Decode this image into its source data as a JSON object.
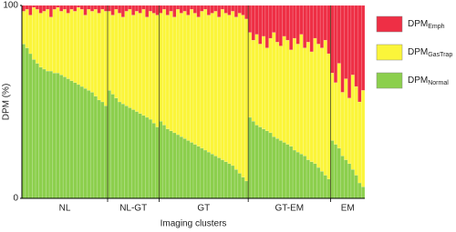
{
  "chart_data": {
    "type": "stacked-bar",
    "y_label": "DPM (%)",
    "x_label": "Imaging clusters",
    "ylim": [
      0,
      100
    ],
    "yticks": [
      0,
      100
    ],
    "groups": [
      {
        "label": "NL",
        "size": 25
      },
      {
        "label": "NL-GT",
        "size": 15
      },
      {
        "label": "GT",
        "size": 26
      },
      {
        "label": "GT-EM",
        "size": 24
      },
      {
        "label": "EM",
        "size": 10
      }
    ],
    "categories": [
      null,
      null,
      null,
      null,
      null,
      null,
      null,
      null,
      null,
      null,
      null,
      null,
      null,
      null,
      null,
      null,
      null,
      null,
      null,
      null,
      null,
      null,
      null,
      null,
      null,
      null,
      null,
      null,
      null,
      null,
      null,
      null,
      null,
      null,
      null,
      null,
      null,
      null,
      null,
      null,
      null,
      null,
      null,
      null,
      null,
      null,
      null,
      null,
      null,
      null,
      null,
      null,
      null,
      null,
      null,
      null,
      null,
      null,
      null,
      null,
      null,
      null,
      null,
      null,
      null,
      null,
      null,
      null,
      null,
      null,
      null,
      null,
      null,
      null,
      null,
      null,
      null,
      null,
      null,
      null,
      null,
      null,
      null,
      null,
      null,
      null,
      null,
      null,
      null,
      null,
      null,
      null,
      null,
      null,
      null,
      null,
      null,
      null,
      null,
      null
    ],
    "series": [
      {
        "name": "DPM",
        "subscript": "Emph",
        "color": "#ee2f45",
        "values": [
          3,
          2,
          5,
          1,
          2,
          4,
          3,
          2,
          6,
          2,
          1,
          3,
          2,
          4,
          2,
          3,
          1,
          2,
          5,
          2,
          3,
          2,
          4,
          2,
          3,
          3,
          5,
          2,
          4,
          6,
          3,
          2,
          5,
          3,
          4,
          2,
          6,
          3,
          4,
          5,
          4,
          2,
          5,
          3,
          6,
          2,
          4,
          3,
          5,
          2,
          4,
          6,
          3,
          2,
          5,
          4,
          3,
          6,
          2,
          4,
          5,
          3,
          6,
          4,
          5,
          7,
          14,
          18,
          15,
          20,
          16,
          22,
          17,
          14,
          19,
          21,
          16,
          18,
          23,
          17,
          20,
          15,
          22,
          19,
          24,
          17,
          20,
          22,
          18,
          25,
          35,
          40,
          30,
          45,
          38,
          48,
          36,
          42,
          50,
          44
        ]
      },
      {
        "name": "DPM",
        "subscript": "GasTrap",
        "color": "#fbf53a",
        "values": [
          17,
          20,
          20,
          27,
          28,
          28,
          30,
          32,
          28,
          33,
          34,
          33,
          35,
          34,
          37,
          37,
          40,
          40,
          38,
          42,
          42,
          45,
          45,
          48,
          49,
          41,
          41,
          46,
          46,
          45,
          49,
          51,
          49,
          52,
          52,
          55,
          52,
          56,
          57,
          58,
          56,
          60,
          59,
          62,
          60,
          65,
          64,
          66,
          65,
          69,
          68,
          67,
          71,
          73,
          71,
          73,
          75,
          73,
          78,
          77,
          77,
          80,
          79,
          83,
          84,
          84,
          44,
          42,
          47,
          43,
          48,
          43,
          49,
          54,
          50,
          49,
          55,
          54,
          50,
          58,
          56,
          62,
          56,
          61,
          57,
          65,
          64,
          64,
          70,
          65,
          35,
          32,
          44,
          33,
          42,
          34,
          49,
          46,
          42,
          50
        ]
      },
      {
        "name": "DPM",
        "subscript": "Normal",
        "color": "#8ccf4d",
        "values": [
          80,
          78,
          75,
          72,
          70,
          68,
          67,
          66,
          66,
          65,
          65,
          64,
          63,
          62,
          61,
          60,
          59,
          58,
          57,
          56,
          55,
          53,
          51,
          50,
          48,
          56,
          54,
          52,
          50,
          49,
          48,
          47,
          46,
          45,
          44,
          43,
          42,
          41,
          39,
          37,
          40,
          38,
          36,
          35,
          34,
          33,
          32,
          31,
          30,
          29,
          28,
          27,
          26,
          25,
          24,
          23,
          22,
          21,
          20,
          19,
          18,
          17,
          15,
          13,
          11,
          9,
          42,
          40,
          38,
          37,
          36,
          35,
          34,
          32,
          31,
          30,
          29,
          28,
          27,
          25,
          24,
          23,
          22,
          20,
          19,
          18,
          16,
          14,
          12,
          10,
          30,
          28,
          26,
          22,
          20,
          18,
          15,
          12,
          8,
          6
        ]
      }
    ]
  }
}
